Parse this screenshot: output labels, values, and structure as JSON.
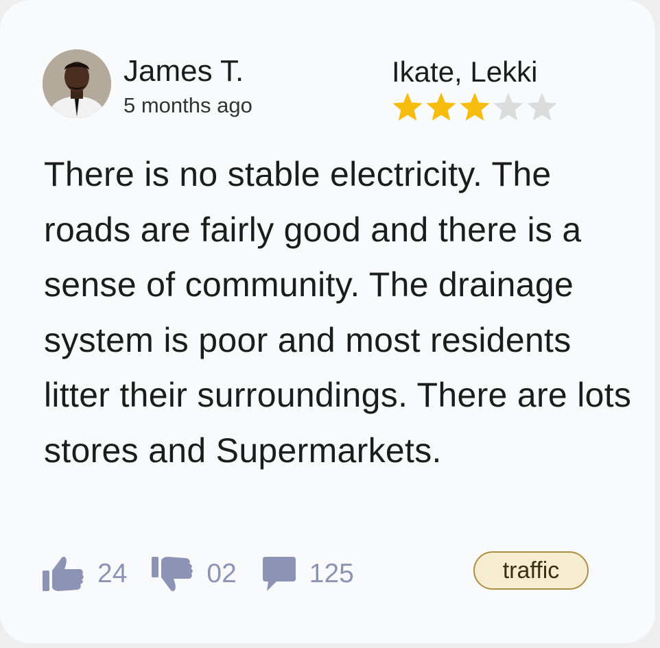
{
  "reviewer": {
    "name": "James T.",
    "posted": "5 months ago"
  },
  "location": "Ikate, Lekki",
  "rating": {
    "value": 3,
    "max": 5,
    "filled_color": "#f7bd0e",
    "empty_color": "#dcdcdc"
  },
  "review_text": "There is no stable electricity. The roads are fairly good and there is a sense of community. The drainage system is poor and most residents litter their surroundings. There are lots stores and Supermarkets.",
  "actions": {
    "likes": "24",
    "dislikes": "02",
    "comments": "125",
    "icon_color": "#8d93b4"
  },
  "tag": {
    "label": "traffic",
    "border_color": "#a98e44",
    "background": "#f6ecd0"
  },
  "icons": [
    "avatar",
    "star-icon",
    "thumbs-up-icon",
    "thumbs-down-icon",
    "comment-icon"
  ]
}
